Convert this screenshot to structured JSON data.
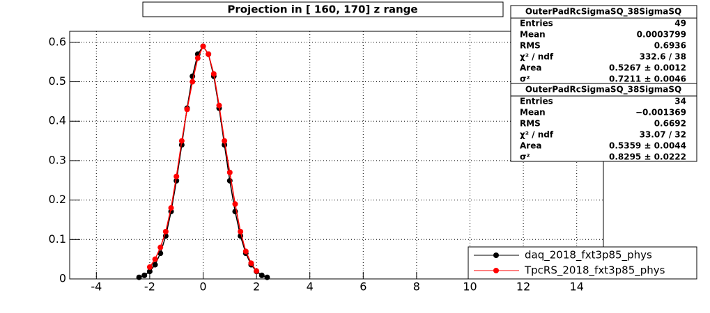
{
  "chart_data": {
    "type": "scatter",
    "title": "Projection in [ 160, 170] z range",
    "xlim": [
      -5,
      15
    ],
    "ylim": [
      0,
      0.628
    ],
    "xticks": [
      -4,
      -2,
      0,
      2,
      4,
      6,
      8,
      10,
      12,
      14
    ],
    "yticks": [
      0,
      0.1,
      0.2,
      0.3,
      0.4,
      0.5,
      0.6
    ],
    "grid": true,
    "legend": "bottom-right",
    "series": [
      {
        "name": "daq_2018_fxt3p85_phys",
        "color": "#000000",
        "x": [
          -2.4,
          -2.2,
          -2.0,
          -1.8,
          -1.6,
          -1.4,
          -1.2,
          -1.0,
          -0.8,
          -0.6,
          -0.4,
          -0.2,
          0.0,
          0.2,
          0.4,
          0.6,
          0.8,
          1.0,
          1.2,
          1.4,
          1.6,
          1.8,
          2.0,
          2.2,
          2.4
        ],
        "values": [
          0.004,
          0.009,
          0.019,
          0.036,
          0.065,
          0.109,
          0.171,
          0.249,
          0.34,
          0.433,
          0.514,
          0.57,
          0.59,
          0.57,
          0.514,
          0.433,
          0.34,
          0.249,
          0.171,
          0.109,
          0.065,
          0.036,
          0.019,
          0.009,
          0.004
        ]
      },
      {
        "name": "TpcRS_2018_fxt3p85_phys",
        "color": "#ff0000",
        "x": [
          -2.0,
          -1.8,
          -1.6,
          -1.4,
          -1.2,
          -1.0,
          -0.8,
          -0.6,
          -0.4,
          -0.2,
          0.0,
          0.2,
          0.4,
          0.6,
          0.8,
          1.0,
          1.2,
          1.4,
          1.6,
          1.8,
          2.0
        ],
        "values": [
          0.03,
          0.05,
          0.08,
          0.12,
          0.18,
          0.26,
          0.35,
          0.43,
          0.5,
          0.56,
          0.59,
          0.57,
          0.52,
          0.44,
          0.35,
          0.27,
          0.19,
          0.12,
          0.07,
          0.04,
          0.02
        ]
      }
    ],
    "stats_boxes": [
      {
        "title": "OuterPadRcSigmaSQ_38SigmaSQ",
        "rows": [
          [
            "Entries",
            "49"
          ],
          [
            "Mean",
            "0.0003799"
          ],
          [
            "RMS",
            "0.6936"
          ],
          [
            "χ² / ndf",
            "332.6 / 38"
          ],
          [
            "Area",
            "0.5267 ± 0.0012"
          ],
          [
            "σ²",
            "0.7211 ± 0.0046"
          ]
        ]
      },
      {
        "title": "OuterPadRcSigmaSQ_38SigmaSQ",
        "rows": [
          [
            "Entries",
            "34"
          ],
          [
            "Mean",
            "−0.001369"
          ],
          [
            "RMS",
            "0.6692"
          ],
          [
            "χ² / ndf",
            "33.07 / 32"
          ],
          [
            "Area",
            "0.5359 ± 0.0044"
          ],
          [
            "σ²",
            "0.8295 ± 0.0222"
          ]
        ]
      }
    ]
  }
}
